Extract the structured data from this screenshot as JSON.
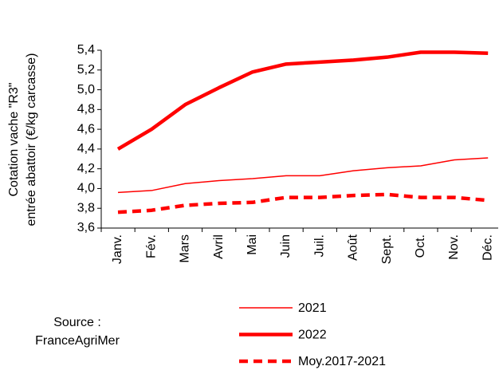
{
  "chart_data": {
    "type": "line",
    "y_label": [
      "Cotation vache \"R3\"",
      "entrée abattoir (€/kg carcasse)"
    ],
    "categories": [
      "Janv.",
      "Fév.",
      "Mars",
      "Avril",
      "Mai",
      "Juin",
      "Juil.",
      "Août",
      "Sept.",
      "Oct.",
      "Nov.",
      "Déc."
    ],
    "series": [
      {
        "name": "2021",
        "color": "#ff0000",
        "values": [
          3.96,
          3.98,
          4.05,
          4.08,
          4.1,
          4.13,
          4.13,
          4.18,
          4.21,
          4.23,
          4.29,
          4.31
        ]
      },
      {
        "name": "2022",
        "color": "#ff0000",
        "values": [
          4.4,
          4.6,
          4.85,
          5.02,
          5.18,
          5.26,
          5.28,
          5.3,
          5.33,
          5.38,
          5.38,
          5.37
        ]
      },
      {
        "name": "Moy.2017-2021",
        "color": "#ff0000",
        "values": [
          3.76,
          3.78,
          3.83,
          3.85,
          3.86,
          3.91,
          3.91,
          3.93,
          3.94,
          3.91,
          3.91,
          3.88
        ]
      }
    ],
    "ylim": [
      3.6,
      5.4
    ],
    "yticks": [
      {
        "value": 3.6,
        "label": "3,6"
      },
      {
        "value": 3.8,
        "label": "3,8"
      },
      {
        "value": 4.0,
        "label": "4,0"
      },
      {
        "value": 4.2,
        "label": "4,2"
      },
      {
        "value": 4.4,
        "label": "4,4"
      },
      {
        "value": 4.6,
        "label": "4,6"
      },
      {
        "value": 4.8,
        "label": "4,8"
      },
      {
        "value": 5.0,
        "label": "5,0"
      },
      {
        "value": 5.2,
        "label": "5,2"
      },
      {
        "value": 5.4,
        "label": "5,4"
      }
    ],
    "source": [
      "Source :",
      "FranceAgriMer"
    ]
  }
}
